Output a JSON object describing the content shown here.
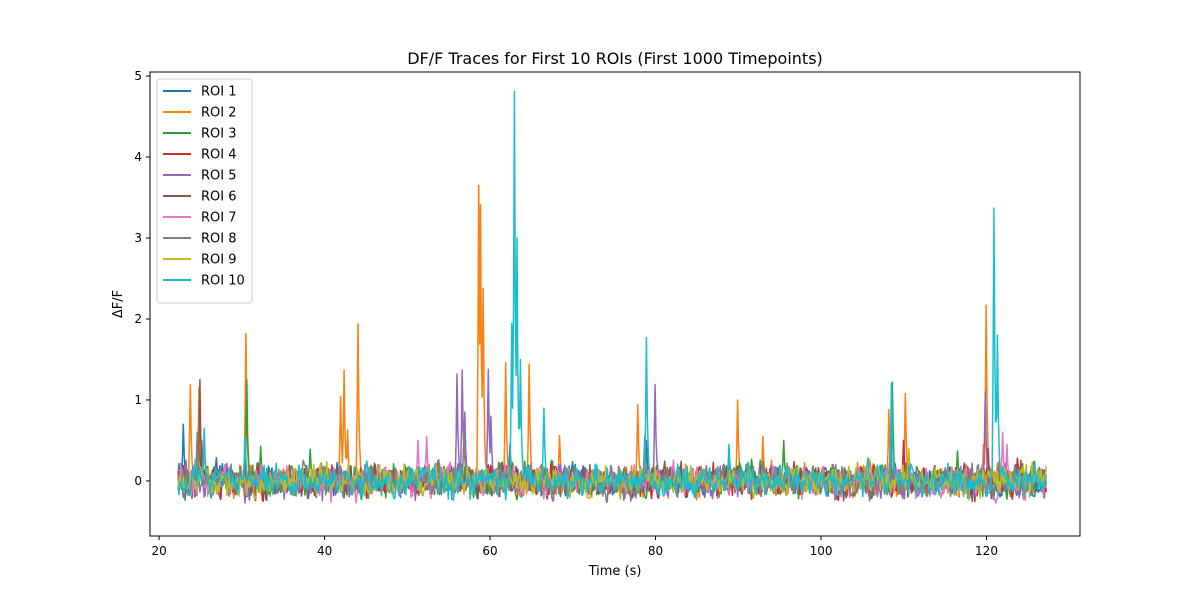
{
  "chart_data": {
    "type": "line",
    "title": "DF/F Traces for First 10 ROIs (First 1000 Timepoints)",
    "xlabel": "Time (s)",
    "ylabel": "ΔF/F",
    "xlim": [
      18.9,
      131.3
    ],
    "ylim": [
      -0.68,
      5.05
    ],
    "xticks": [
      20,
      40,
      60,
      80,
      100,
      120
    ],
    "yticks": [
      0,
      1,
      2,
      3,
      4,
      5
    ],
    "grid": false,
    "legend": "upper-left",
    "x_range": [
      22.3,
      127.2
    ],
    "n_points": 1000,
    "series": [
      {
        "name": "ROI 1",
        "color": "#1f77b4",
        "peaks": [
          [
            22.9,
            0.7
          ],
          [
            24.9,
            0.55
          ],
          [
            62.4,
            0.45
          ],
          [
            78.9,
            0.5
          ]
        ]
      },
      {
        "name": "ROI 2",
        "color": "#ff7f0e",
        "peaks": [
          [
            23.8,
            1.19
          ],
          [
            24.8,
            1.15
          ],
          [
            30.5,
            1.82
          ],
          [
            41.9,
            1.04
          ],
          [
            42.4,
            1.37
          ],
          [
            42.8,
            0.63
          ],
          [
            44.0,
            1.94
          ],
          [
            58.6,
            3.65
          ],
          [
            58.8,
            3.41
          ],
          [
            59.2,
            2.38
          ],
          [
            61.9,
            1.46
          ],
          [
            64.7,
            1.44
          ],
          [
            68.4,
            0.56
          ],
          [
            77.8,
            0.94
          ],
          [
            89.9,
            1.0
          ],
          [
            93.0,
            0.55
          ],
          [
            108.2,
            0.88
          ],
          [
            110.2,
            1.08
          ],
          [
            120.0,
            2.17
          ],
          [
            119.6,
            0.45
          ]
        ]
      },
      {
        "name": "ROI 3",
        "color": "#2ca02c",
        "peaks": [
          [
            30.6,
            1.25
          ],
          [
            32.3,
            0.43
          ],
          [
            38.3,
            0.39
          ],
          [
            95.5,
            0.5
          ],
          [
            108.6,
            1.22
          ],
          [
            116.5,
            0.37
          ]
        ]
      },
      {
        "name": "ROI 4",
        "color": "#d62728",
        "peaks": [
          [
            25.1,
            0.5
          ],
          [
            110.0,
            0.5
          ],
          [
            120.2,
            0.4
          ]
        ]
      },
      {
        "name": "ROI 5",
        "color": "#9467bd",
        "peaks": [
          [
            56.0,
            1.32
          ],
          [
            56.6,
            1.37
          ],
          [
            56.9,
            0.85
          ],
          [
            59.8,
            1.38
          ],
          [
            60.1,
            0.8
          ],
          [
            79.9,
            1.19
          ],
          [
            119.9,
            1.1
          ]
        ]
      },
      {
        "name": "ROI 6",
        "color": "#8c564b",
        "peaks": [
          [
            24.9,
            1.25
          ],
          [
            25.4,
            0.45
          ]
        ]
      },
      {
        "name": "ROI 7",
        "color": "#e377c2",
        "peaks": [
          [
            51.3,
            0.5
          ],
          [
            52.3,
            0.55
          ],
          [
            121.9,
            0.6
          ],
          [
            122.5,
            0.45
          ]
        ]
      },
      {
        "name": "ROI 8",
        "color": "#7f7f7f",
        "peaks": [
          [
            24.6,
            0.6
          ],
          [
            56.8,
            0.6
          ],
          [
            78.7,
            0.55
          ],
          [
            108.4,
            0.55
          ]
        ]
      },
      {
        "name": "ROI 9",
        "color": "#bcbd22",
        "peaks": [
          [
            25.5,
            0.5
          ],
          [
            110.6,
            0.4
          ]
        ]
      },
      {
        "name": "ROI 10",
        "color": "#17becf",
        "peaks": [
          [
            25.4,
            0.65
          ],
          [
            30.4,
            0.55
          ],
          [
            62.6,
            1.94
          ],
          [
            62.9,
            4.81
          ],
          [
            63.2,
            3.0
          ],
          [
            63.7,
            1.5
          ],
          [
            66.5,
            0.9
          ],
          [
            78.9,
            1.77
          ],
          [
            88.9,
            0.45
          ],
          [
            108.5,
            1.2
          ],
          [
            120.9,
            3.37
          ],
          [
            121.3,
            1.8
          ]
        ]
      }
    ]
  }
}
